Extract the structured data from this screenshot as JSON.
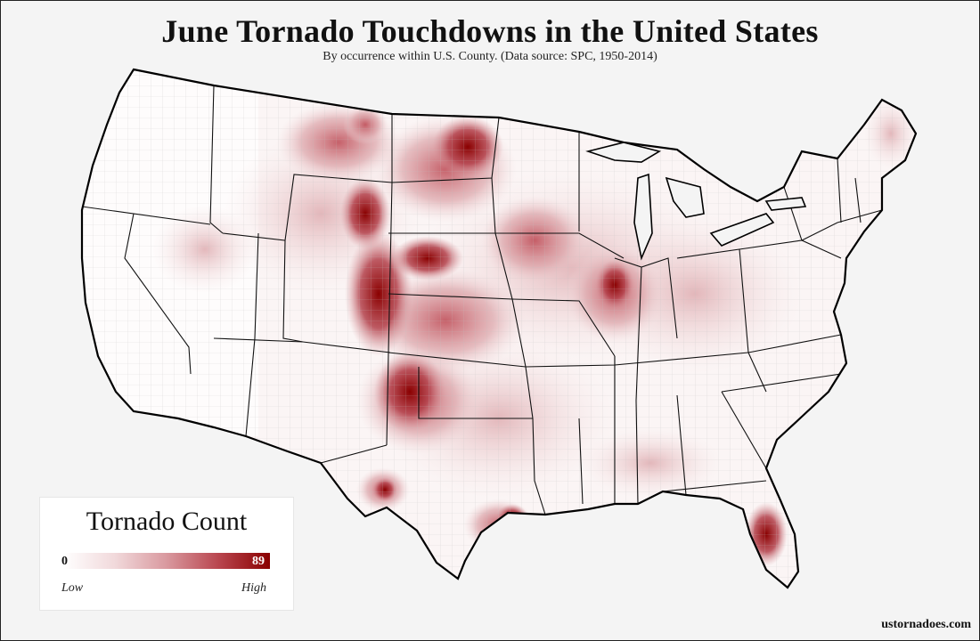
{
  "title": "June Tornado Touchdowns in the United States",
  "subtitle": "By occurrence within U.S. County. (Data source: SPC, 1950-2014)",
  "legend": {
    "title": "Tornado Count",
    "min_value": "0",
    "max_value": "89",
    "low_label": "Low",
    "high_label": "High",
    "color_low": "#ffffff",
    "color_high": "#8a0000"
  },
  "credit": "ustornadoes.com",
  "map": {
    "background_color": "#f4f4f4",
    "land_color": "#ffffff",
    "border_color": "#000000",
    "hotspots": [
      {
        "name": "eastern-colorado",
        "intensity": 1.0
      },
      {
        "name": "southeastern-wyoming",
        "intensity": 0.95
      },
      {
        "name": "western-kansas",
        "intensity": 0.8
      },
      {
        "name": "texas-panhandle",
        "intensity": 0.85
      },
      {
        "name": "dakotas",
        "intensity": 0.7
      },
      {
        "name": "central-nebraska",
        "intensity": 0.75
      },
      {
        "name": "central-illinois",
        "intensity": 0.55
      },
      {
        "name": "south-florida",
        "intensity": 0.9
      },
      {
        "name": "houston-area",
        "intensity": 0.6
      },
      {
        "name": "montana-east",
        "intensity": 0.55
      }
    ]
  }
}
